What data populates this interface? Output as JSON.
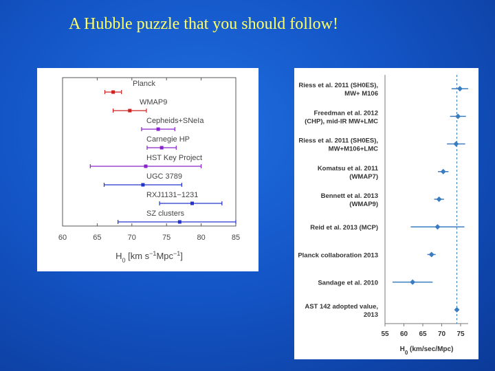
{
  "slide": {
    "title": "A Hubble puzzle that you should follow!"
  },
  "chart_data": [
    {
      "type": "scatter",
      "title": "",
      "xlabel": "H",
      "xlabel_sub": "0",
      "xlabel_units": "[km s",
      "xlabel_units_sup1": "−1",
      "xlabel_units_mid": "Mpc",
      "xlabel_units_sup2": "−1",
      "xlabel_units_end": "]",
      "xlim": [
        60,
        85
      ],
      "xticks": [
        60,
        65,
        70,
        75,
        80,
        85
      ],
      "series": [
        {
          "label": "Planck",
          "value": 67.3,
          "low": 66.1,
          "high": 68.5,
          "color": "#cc2222"
        },
        {
          "label": "WMAP9",
          "value": 69.7,
          "low": 67.3,
          "high": 72.1,
          "color": "#cc2222"
        },
        {
          "label": "Cepheids+SNeIa",
          "value": 73.8,
          "low": 71.4,
          "high": 76.2,
          "color": "#8a22cc"
        },
        {
          "label": "Carnegie HP",
          "value": 74.3,
          "low": 72.2,
          "high": 76.4,
          "color": "#8a22cc"
        },
        {
          "label": "HST Key Project",
          "value": 72.0,
          "low": 64.0,
          "high": 80.0,
          "color": "#8a22cc"
        },
        {
          "label": "UGC 3789",
          "value": 71.6,
          "low": 66.0,
          "high": 77.2,
          "color": "#2233cc"
        },
        {
          "label": "RXJ1131−1231",
          "value": 78.7,
          "low": 74.0,
          "high": 83.0,
          "color": "#2233cc"
        },
        {
          "label": "SZ clusters",
          "value": 76.9,
          "low": 68.0,
          "high": 85.0,
          "color": "#2233cc"
        }
      ]
    },
    {
      "type": "scatter",
      "title": "",
      "xlabel": "H",
      "xlabel_sub": "0",
      "xlabel_units": "(km/sec/Mpc)",
      "xlim": [
        55,
        77
      ],
      "xticks": [
        55,
        60,
        65,
        70,
        75
      ],
      "reference_line": 74.0,
      "color": "#3a7cc0",
      "series": [
        {
          "label": [
            "Riess et al. 2011 (SH0ES),",
            "MW+ M106"
          ],
          "value": 74.8,
          "low": 72.6,
          "high": 77.0
        },
        {
          "label": [
            "Freedman et al. 2012",
            "(CHP), mid-IR MW+LMC"
          ],
          "value": 74.3,
          "low": 72.2,
          "high": 76.4
        },
        {
          "label": [
            "Riess et al. 2011 (SH0ES),",
            "MW+M106+LMC"
          ],
          "value": 73.8,
          "low": 71.4,
          "high": 76.2
        },
        {
          "label": [
            "Komatsu et al. 2011",
            "(WMAP7)"
          ],
          "value": 70.4,
          "low": 69.0,
          "high": 71.8
        },
        {
          "label": [
            "Bennett et al. 2013",
            "(WMAP9)"
          ],
          "value": 69.3,
          "low": 68.0,
          "high": 70.6
        },
        {
          "label": [
            "Reid et al. 2013 (MCP)"
          ],
          "value": 68.9,
          "low": 61.8,
          "high": 76.0
        },
        {
          "label": [
            "Planck collaboration 2013"
          ],
          "value": 67.3,
          "low": 66.2,
          "high": 68.4
        },
        {
          "label": [
            "Sandage et al. 2010"
          ],
          "value": 62.3,
          "low": 57.0,
          "high": 67.6
        },
        {
          "label": [
            "AST 142 adopted value,",
            "2013"
          ],
          "value": 74.0,
          "low": 74.0,
          "high": 74.0
        }
      ]
    }
  ]
}
